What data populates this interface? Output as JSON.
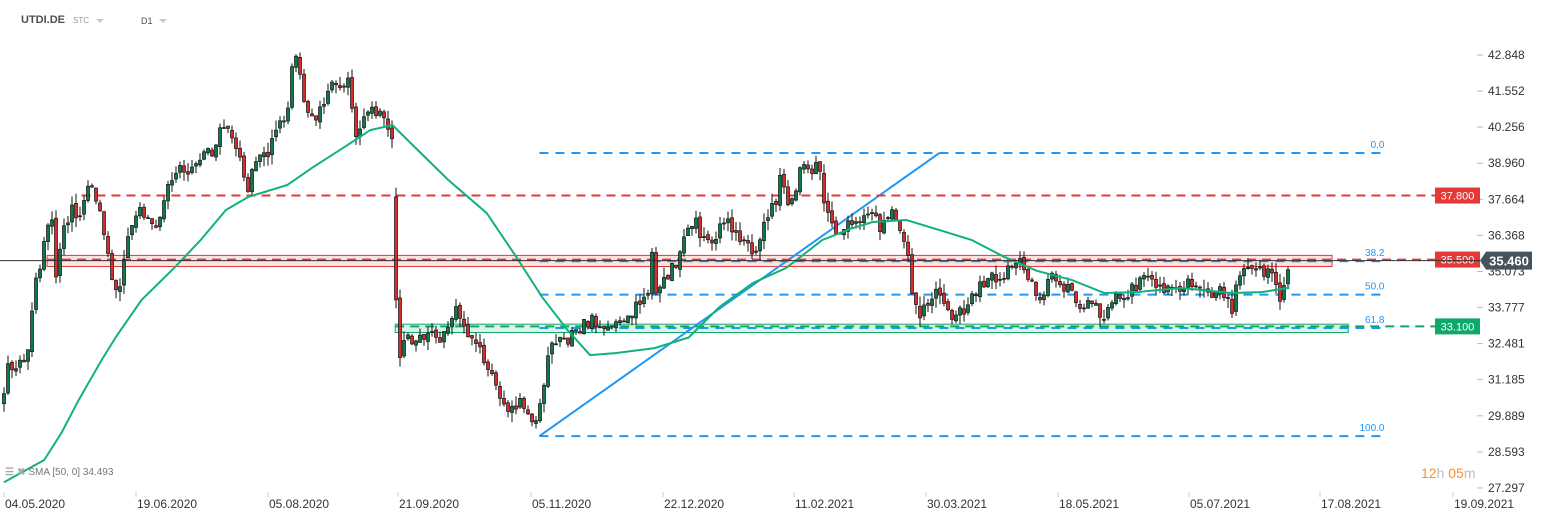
{
  "header": {
    "symbol": "UTDI.DE",
    "type": "STC",
    "interval": "D1"
  },
  "indicator": {
    "label": "SMA [50, 0] 34.493"
  },
  "countdown": {
    "hours": "12",
    "h": "h",
    "minutes": "05",
    "m": "m"
  },
  "colors": {
    "up": "#0e7a4a",
    "down": "#d32f2f",
    "sma": "#11b27a",
    "resistance": "#e53935",
    "support": "#0fa86b",
    "fibonacci": "#2196f3",
    "current_price_bg": "#47535c"
  },
  "chart_data": {
    "type": "candlestick",
    "symbol": "UTDI.DE",
    "ylim": [
      27.297,
      43.5
    ],
    "y_ticks": [
      "42.848",
      "41.552",
      "40.256",
      "38.960",
      "37.664",
      "36.368",
      "35.073",
      "33.777",
      "32.481",
      "31.185",
      "29.889",
      "28.593",
      "27.297"
    ],
    "x_ticks": [
      "04.05.2020",
      "19.06.2020",
      "05.08.2020",
      "21.09.2020",
      "05.11.2020",
      "22.12.2020",
      "11.02.2021",
      "30.03.2021",
      "18.05.2021",
      "05.07.2021",
      "17.08.2021",
      "19.09.2021"
    ],
    "grid": false,
    "current_price": "35.460",
    "close": [
      [
        "2020-05-04",
        30.56
      ],
      [
        "2020-05-05",
        31.6
      ],
      [
        "2020-05-10",
        31.8
      ],
      [
        "2020-05-12",
        32.1
      ],
      [
        "2020-05-14",
        34.1
      ],
      [
        "2020-05-16",
        35.0
      ],
      [
        "2020-05-19",
        36.8
      ],
      [
        "2020-05-21",
        37.2
      ],
      [
        "2020-05-22",
        35.0
      ],
      [
        "2020-05-25",
        36.7
      ],
      [
        "2020-05-28",
        37.35
      ],
      [
        "2020-05-30",
        36.9
      ],
      [
        "2020-06-01",
        37.9
      ],
      [
        "2020-06-04",
        38.25
      ],
      [
        "2020-06-07",
        36.8
      ],
      [
        "2020-06-10",
        35.2
      ],
      [
        "2020-06-13",
        34.05
      ],
      [
        "2020-06-15",
        35.7
      ],
      [
        "2020-06-18",
        36.9
      ],
      [
        "2020-06-20",
        37.4
      ],
      [
        "2020-06-26",
        36.7
      ],
      [
        "2020-06-30",
        38.0
      ],
      [
        "2020-07-04",
        38.97
      ],
      [
        "2020-07-07",
        38.6
      ],
      [
        "2020-07-12",
        39.08
      ],
      [
        "2020-07-16",
        39.4
      ],
      [
        "2020-07-21",
        40.6
      ],
      [
        "2020-07-25",
        39.4
      ],
      [
        "2020-07-29",
        38.1
      ],
      [
        "2020-08-02",
        39.4
      ],
      [
        "2020-08-05",
        39.2
      ],
      [
        "2020-08-08",
        40.15
      ],
      [
        "2020-08-12",
        40.87
      ],
      [
        "2020-08-14",
        42.6
      ],
      [
        "2020-08-15",
        42.9
      ],
      [
        "2020-08-18",
        41.3
      ],
      [
        "2020-08-22",
        40.3
      ],
      [
        "2020-08-27",
        41.6
      ],
      [
        "2020-09-01",
        41.84
      ],
      [
        "2020-09-03",
        42.1
      ],
      [
        "2020-09-06",
        39.7
      ],
      [
        "2020-09-10",
        40.76
      ],
      [
        "2020-09-16",
        40.76
      ],
      [
        "2020-09-19",
        39.97
      ],
      [
        "2020-09-21",
        30.35
      ],
      [
        "2020-09-22",
        32.86
      ],
      [
        "2020-09-25",
        32.6
      ],
      [
        "2020-10-02",
        32.97
      ],
      [
        "2020-10-05",
        32.5
      ],
      [
        "2020-10-10",
        33.8
      ],
      [
        "2020-10-13",
        33.1
      ],
      [
        "2020-10-18",
        32.37
      ],
      [
        "2020-10-23",
        31.4
      ],
      [
        "2020-10-27",
        30.2
      ],
      [
        "2020-11-01",
        30.35
      ],
      [
        "2020-11-05",
        29.7
      ],
      [
        "2020-11-07",
        29.7
      ],
      [
        "2020-11-09",
        30.45
      ],
      [
        "2020-11-11",
        32.0
      ],
      [
        "2020-11-16",
        32.97
      ],
      [
        "2020-11-18",
        32.6
      ],
      [
        "2020-11-26",
        33.33
      ],
      [
        "2020-12-03",
        33.0
      ],
      [
        "2020-12-09",
        33.57
      ],
      [
        "2020-12-15",
        33.9
      ],
      [
        "2020-12-17",
        34.3
      ],
      [
        "2020-12-18",
        35.7
      ],
      [
        "2020-12-20",
        34.1
      ],
      [
        "2020-12-23",
        34.77
      ],
      [
        "2020-12-28",
        35.6
      ],
      [
        "2021-01-01",
        36.67
      ],
      [
        "2021-01-04",
        36.8
      ],
      [
        "2021-01-08",
        35.95
      ],
      [
        "2021-01-15",
        36.9
      ],
      [
        "2021-01-23",
        36.1
      ],
      [
        "2021-01-26",
        35.7
      ],
      [
        "2021-01-31",
        36.9
      ],
      [
        "2021-02-04",
        37.6
      ],
      [
        "2021-02-06",
        38.6
      ],
      [
        "2021-02-08",
        37.5
      ],
      [
        "2021-02-12",
        38.0
      ],
      [
        "2021-02-14",
        39.08
      ],
      [
        "2021-02-17",
        38.47
      ],
      [
        "2021-02-19",
        39.2
      ],
      [
        "2021-02-22",
        37.4
      ],
      [
        "2021-02-26",
        36.56
      ],
      [
        "2021-03-02",
        36.67
      ],
      [
        "2021-03-07",
        37.0
      ],
      [
        "2021-03-10",
        37.28
      ],
      [
        "2021-03-14",
        36.67
      ],
      [
        "2021-03-18",
        37.4
      ],
      [
        "2021-03-22",
        36.3
      ],
      [
        "2021-03-24",
        35.48
      ],
      [
        "2021-03-25",
        34.15
      ],
      [
        "2021-03-28",
        33.33
      ],
      [
        "2021-03-31",
        34.15
      ],
      [
        "2021-04-04",
        34.4
      ],
      [
        "2021-04-10",
        33.33
      ],
      [
        "2021-04-16",
        34.15
      ],
      [
        "2021-04-21",
        34.77
      ],
      [
        "2021-04-26",
        34.87
      ],
      [
        "2021-05-04",
        35.38
      ],
      [
        "2021-05-08",
        34.77
      ],
      [
        "2021-05-12",
        33.7
      ],
      [
        "2021-05-15",
        35.2
      ],
      [
        "2021-05-19",
        34.5
      ],
      [
        "2021-05-23",
        34.4
      ],
      [
        "2021-05-27",
        33.8
      ],
      [
        "2021-05-31",
        33.9
      ],
      [
        "2021-06-04",
        33.33
      ],
      [
        "2021-06-06",
        33.94
      ],
      [
        "2021-06-12",
        34.3
      ],
      [
        "2021-06-17",
        34.65
      ],
      [
        "2021-06-21",
        35.0
      ],
      [
        "2021-06-24",
        34.5
      ],
      [
        "2021-06-30",
        34.4
      ],
      [
        "2021-07-04",
        34.65
      ],
      [
        "2021-07-09",
        34.4
      ],
      [
        "2021-07-12",
        34.05
      ],
      [
        "2021-07-15",
        34.4
      ],
      [
        "2021-07-19",
        33.7
      ],
      [
        "2021-07-22",
        35.1
      ],
      [
        "2021-07-24",
        35.38
      ],
      [
        "2021-07-28",
        35.1
      ],
      [
        "2021-08-01",
        35.1
      ],
      [
        "2021-08-04",
        34.15
      ],
      [
        "2021-08-06",
        34.77
      ],
      [
        "2021-08-07",
        35.46
      ]
    ],
    "sma50": [
      [
        "2020-05-04",
        27.5
      ],
      [
        "2020-05-18",
        28.3
      ],
      [
        "2020-05-24",
        29.27
      ],
      [
        "2020-05-30",
        30.45
      ],
      [
        "2020-06-07",
        31.89
      ],
      [
        "2020-06-12",
        32.72
      ],
      [
        "2020-06-21",
        34.05
      ],
      [
        "2020-07-03",
        35.24
      ],
      [
        "2020-07-12",
        36.2
      ],
      [
        "2020-07-21",
        37.28
      ],
      [
        "2020-07-29",
        37.75
      ],
      [
        "2020-08-12",
        38.18
      ],
      [
        "2020-08-21",
        38.8
      ],
      [
        "2020-09-01",
        39.5
      ],
      [
        "2020-09-11",
        40.15
      ],
      [
        "2020-09-19",
        40.33
      ],
      [
        "2020-09-28",
        39.4
      ],
      [
        "2020-10-08",
        38.36
      ],
      [
        "2020-10-21",
        37.17
      ],
      [
        "2020-10-31",
        35.6
      ],
      [
        "2020-11-09",
        34.15
      ],
      [
        "2020-11-18",
        32.97
      ],
      [
        "2020-11-26",
        32.07
      ],
      [
        "2020-12-05",
        32.14
      ],
      [
        "2020-12-19",
        32.32
      ],
      [
        "2021-01-01",
        32.7
      ],
      [
        "2021-01-13",
        33.8
      ],
      [
        "2021-01-26",
        34.66
      ],
      [
        "2021-02-08",
        35.2
      ],
      [
        "2021-02-21",
        36.2
      ],
      [
        "2021-03-03",
        36.6
      ],
      [
        "2021-03-11",
        36.85
      ],
      [
        "2021-03-23",
        36.92
      ],
      [
        "2021-04-04",
        36.56
      ],
      [
        "2021-04-16",
        36.2
      ],
      [
        "2021-04-28",
        35.6
      ],
      [
        "2021-05-10",
        35.1
      ],
      [
        "2021-05-23",
        34.77
      ],
      [
        "2021-06-04",
        34.3
      ],
      [
        "2021-06-16",
        34.33
      ],
      [
        "2021-07-02",
        34.48
      ],
      [
        "2021-07-19",
        34.3
      ],
      [
        "2021-07-29",
        34.33
      ],
      [
        "2021-08-07",
        34.493
      ]
    ],
    "levels": [
      {
        "price": 37.8,
        "label": "37.800",
        "kind": "resistance",
        "from": "2020-05-31"
      },
      {
        "price": 35.5,
        "label": "35.500",
        "kind": "resistance",
        "from": "2020-05-19",
        "zone": [
          35.25,
          35.65
        ],
        "zone_to": "2021-08-20"
      },
      {
        "price": 33.1,
        "label": "33.100",
        "kind": "support",
        "from": "2020-09-20",
        "zone": [
          32.88,
          33.18
        ],
        "zone_to": "2021-08-24"
      }
    ],
    "fibonacci": {
      "from": [
        "2020-11-08",
        29.16
      ],
      "to": [
        "2021-04-04",
        39.33
      ],
      "extend_to": "2021-09-02",
      "levels": [
        {
          "label": "0.0",
          "price": 39.33
        },
        {
          "label": "38.2",
          "price": 35.44
        },
        {
          "label": "50.0",
          "price": 34.24
        },
        {
          "label": "61.8",
          "price": 33.04
        },
        {
          "label": "100.0",
          "price": 29.16
        }
      ]
    }
  }
}
